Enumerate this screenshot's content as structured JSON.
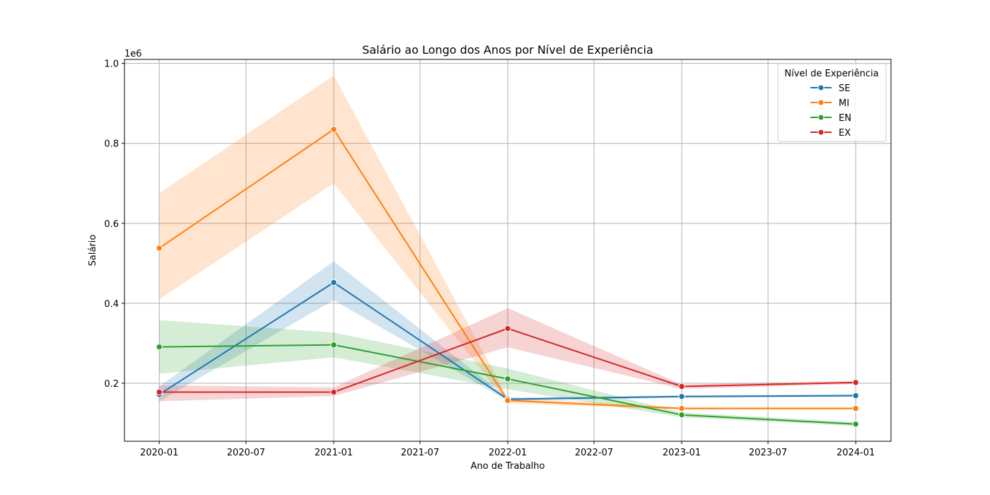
{
  "chart_data": {
    "type": "line",
    "title": "Salário ao Longo dos Anos por Nível de Experiência",
    "xlabel": "Ano de Trabalho",
    "ylabel": "Salário",
    "y_offset_label": "1e6",
    "x": [
      "2020-01",
      "2021-01",
      "2022-01",
      "2023-01",
      "2024-01"
    ],
    "xlim": [
      "2019-10-20",
      "2024-03-15"
    ],
    "ylim": [
      55000,
      1010000
    ],
    "x_ticks": [
      "2020-01",
      "2020-07",
      "2021-01",
      "2021-07",
      "2022-01",
      "2022-07",
      "2023-01",
      "2023-07",
      "2024-01"
    ],
    "y_ticks": [
      200000,
      400000,
      600000,
      800000,
      1000000
    ],
    "y_tick_labels": [
      "0.2",
      "0.4",
      "0.6",
      "0.8",
      "1.0"
    ],
    "grid": true,
    "legend_title": "Nível de Experiência",
    "legend_position": "top-right",
    "series": [
      {
        "name": "SE",
        "color": "#1f77b4",
        "values": [
          172000,
          452000,
          160000,
          167000,
          169000
        ],
        "ci_low": [
          155000,
          408000,
          156000,
          164000,
          166000
        ],
        "ci_high": [
          192000,
          505000,
          164000,
          170000,
          172000
        ]
      },
      {
        "name": "MI",
        "color": "#ff7f0e",
        "values": [
          538000,
          835000,
          157000,
          137000,
          137000
        ],
        "ci_low": [
          410000,
          700000,
          150000,
          134000,
          134000
        ],
        "ci_high": [
          675000,
          970000,
          165000,
          140000,
          140000
        ]
      },
      {
        "name": "EN",
        "color": "#2ca02c",
        "values": [
          291000,
          296000,
          211000,
          121000,
          98000
        ],
        "ci_low": [
          224000,
          265000,
          185000,
          115000,
          93000
        ],
        "ci_high": [
          358000,
          327000,
          237000,
          127000,
          103000
        ]
      },
      {
        "name": "EX",
        "color": "#d62728",
        "values": [
          178000,
          178000,
          337000,
          192000,
          202000
        ],
        "ci_low": [
          155000,
          168000,
          290000,
          186000,
          198000
        ],
        "ci_high": [
          195000,
          190000,
          388000,
          197000,
          206000
        ]
      }
    ]
  }
}
